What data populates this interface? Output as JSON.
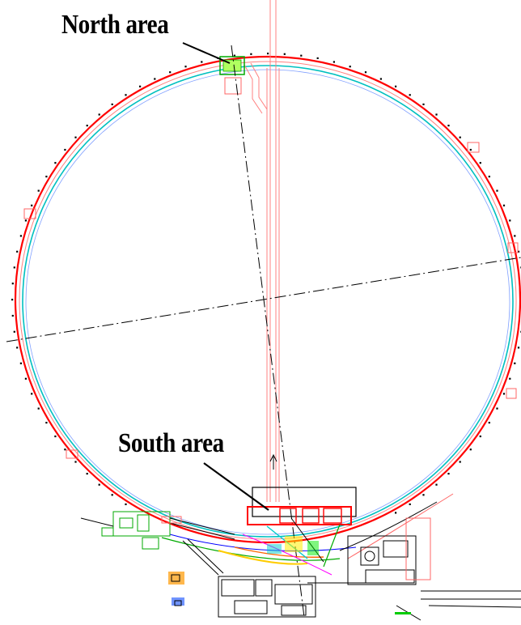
{
  "labels": {
    "north": "North area",
    "south": "South area"
  },
  "colors": {
    "ring_outer": "#ff0000",
    "ring_inner": "#00cccc",
    "outline": "#ff6666",
    "beamlines": "#00aa00",
    "axes": "#000000"
  }
}
